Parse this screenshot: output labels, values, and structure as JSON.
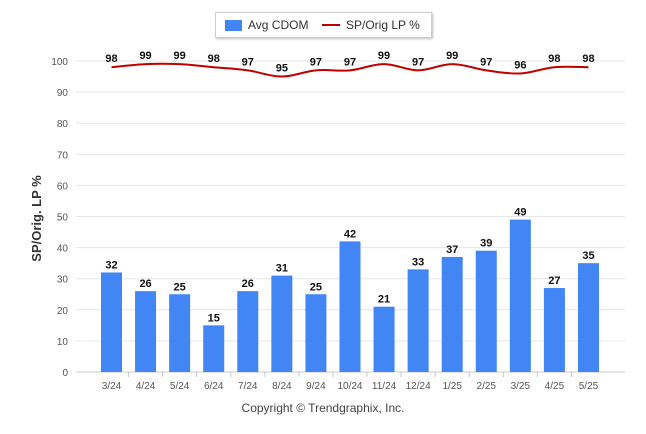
{
  "chart_data": {
    "type": "bar",
    "categories": [
      "3/24",
      "4/24",
      "5/24",
      "6/24",
      "7/24",
      "8/24",
      "9/24",
      "10/24",
      "11/24",
      "12/24",
      "1/25",
      "2/25",
      "3/25",
      "4/25",
      "5/25"
    ],
    "series": [
      {
        "name": "Avg CDOM",
        "type": "bar",
        "color": "#4285f4",
        "values": [
          32,
          26,
          25,
          15,
          26,
          31,
          25,
          42,
          21,
          33,
          37,
          39,
          49,
          27,
          35
        ]
      },
      {
        "name": "SP/Orig LP %",
        "type": "line",
        "color": "#c00000",
        "values": [
          98,
          99,
          99,
          98,
          97,
          95,
          97,
          97,
          99,
          97,
          99,
          97,
          96,
          98,
          98
        ]
      }
    ],
    "ylabel": "SP/Orig. LP %",
    "ylim": [
      0,
      100
    ],
    "yticks": [
      0,
      10,
      20,
      30,
      40,
      50,
      60,
      70,
      80,
      90,
      100
    ],
    "grid": true,
    "legend": "top-center"
  },
  "copyright": "Copyright © Trendgraphix, Inc."
}
